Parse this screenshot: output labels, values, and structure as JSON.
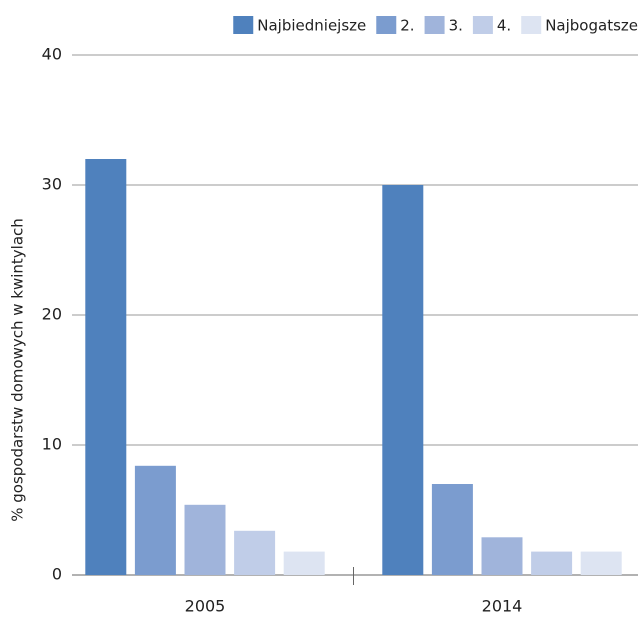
{
  "chart_data": {
    "type": "bar",
    "y_label": "% gospodarstw domowych w kwintylach",
    "categories": [
      "2005",
      "2014"
    ],
    "series": [
      {
        "name": "Najbiedniejsze",
        "color": "#4f81bd",
        "values": [
          32,
          30
        ]
      },
      {
        "name": "2.",
        "color": "#7b9ccf",
        "values": [
          8.4,
          7.0
        ]
      },
      {
        "name": "3.",
        "color": "#a0b4db",
        "values": [
          5.4,
          2.9
        ]
      },
      {
        "name": "4.",
        "color": "#c0cde8",
        "values": [
          3.4,
          1.8
        ]
      },
      {
        "name": "Najbogatsze",
        "color": "#dde4f2",
        "values": [
          1.8,
          1.8
        ]
      }
    ],
    "ylim": [
      0,
      40
    ],
    "yticks": [
      0,
      10,
      20,
      30,
      40
    ],
    "grid": true,
    "legend": "top-right"
  }
}
